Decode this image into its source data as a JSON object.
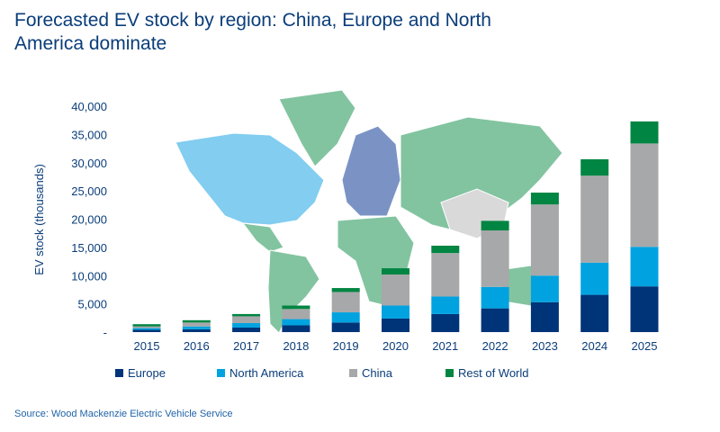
{
  "title": "Forecasted EV stock by region: China, Europe and North America dominate",
  "source": "Source: Wood Mackenzie Electric Vehicle Service",
  "colors": {
    "Europe": "#003478",
    "North America": "#00a3e0",
    "China": "#a7a8aa",
    "Rest of World": "#008542",
    "map_north_america": "#82cdf0",
    "map_europe": "#7b93c4",
    "map_china": "#d9d9da",
    "map_rest": "#82c4a0"
  },
  "chart_data": {
    "type": "bar",
    "stacked": true,
    "title": "Forecasted EV stock by region: China, Europe and North America dominate",
    "xlabel": "",
    "ylabel": "EV stock (thousands)",
    "ylim": [
      0,
      40000
    ],
    "yticks": [
      0,
      5000,
      10000,
      15000,
      20000,
      25000,
      30000,
      35000,
      40000
    ],
    "ytick_labels": [
      "-",
      "5,000",
      "10,000",
      "15,000",
      "20,000",
      "25,000",
      "30,000",
      "35,000",
      "40,000"
    ],
    "categories": [
      "2015",
      "2016",
      "2017",
      "2018",
      "2019",
      "2020",
      "2021",
      "2022",
      "2023",
      "2024",
      "2025"
    ],
    "series": [
      {
        "name": "Europe",
        "values": [
          400,
          500,
          800,
          1200,
          1700,
          2400,
          3200,
          4200,
          5300,
          6600,
          8100
        ]
      },
      {
        "name": "North America",
        "values": [
          300,
          500,
          800,
          1100,
          1800,
          2300,
          3100,
          3800,
          4700,
          5700,
          7000
        ]
      },
      {
        "name": "China",
        "values": [
          300,
          700,
          1200,
          1800,
          3600,
          5500,
          7700,
          10000,
          12600,
          15400,
          18300
        ]
      },
      {
        "name": "Rest of World",
        "values": [
          400,
          400,
          400,
          600,
          700,
          1100,
          1300,
          1700,
          2100,
          2900,
          3900
        ]
      }
    ],
    "grid": false,
    "legend": "bottom"
  }
}
